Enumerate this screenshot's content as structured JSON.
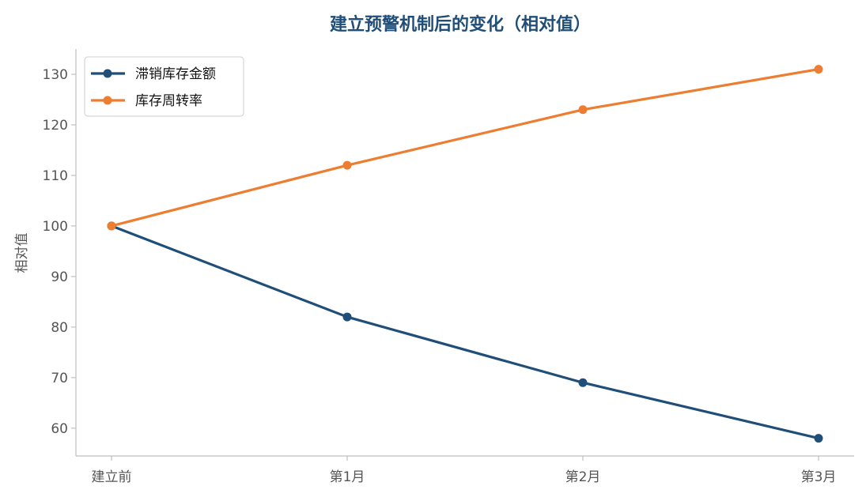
{
  "chart_data": {
    "type": "line",
    "title": "建立预警机制后的变化（相对值）",
    "xlabel": "",
    "ylabel": "相对值",
    "categories": [
      "建立前",
      "第1月",
      "第2月",
      "第3月"
    ],
    "ylim": [
      54.5,
      135
    ],
    "yticks": [
      60,
      70,
      80,
      90,
      100,
      110,
      120,
      130
    ],
    "grid": false,
    "legend_position": "top-left",
    "series": [
      {
        "name": "滞销库存金额",
        "color": "#1f4e79",
        "values": [
          100,
          82,
          69,
          58
        ]
      },
      {
        "name": "库存周转率",
        "color": "#ed7d31",
        "values": [
          100,
          112,
          123,
          131
        ]
      }
    ],
    "title_color": "#1f4e79"
  }
}
